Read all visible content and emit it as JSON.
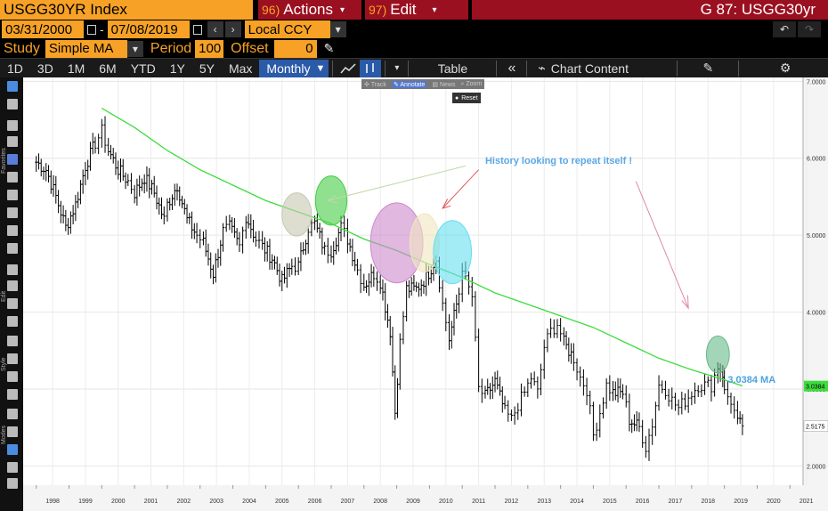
{
  "header": {
    "ticker": "USGG30YR Index",
    "actions_num": "96)",
    "actions_label": "Actions",
    "edit_num": "97)",
    "edit_label": "Edit",
    "chart_id": "G 87: USGG30yr"
  },
  "date_range": {
    "start": "03/31/2000",
    "separator": "-",
    "end": "07/08/2019",
    "currency": "Local CCY"
  },
  "study": {
    "label": "Study",
    "type": "Simple MA",
    "period_label": "Period",
    "period": "100",
    "offset_label": "Offset",
    "offset": "0"
  },
  "timeframes": [
    "1D",
    "3D",
    "1M",
    "6M",
    "YTD",
    "1Y",
    "5Y",
    "Max"
  ],
  "frequency": "Monthly",
  "table_label": "Table",
  "chart_content_label": "Chart Content",
  "float_tools": {
    "track": "Track",
    "annotate": "Annotate",
    "news": "News",
    "zoom": "Zoom",
    "reset": "Reset"
  },
  "side_labels": {
    "favorites": "Favorites",
    "edit": "Edit",
    "style": "Style",
    "modes": "Modes"
  },
  "chart_data": {
    "type": "line",
    "title": "",
    "xlabel": "",
    "ylabel": "",
    "x_ticks": [
      "1998",
      "1999",
      "2000",
      "2001",
      "2002",
      "2003",
      "2004",
      "2005",
      "2006",
      "2007",
      "2008",
      "2009",
      "2010",
      "2011",
      "2012",
      "2013",
      "2014",
      "2015",
      "2016",
      "2017",
      "2018",
      "2019",
      "2020",
      "2021"
    ],
    "y_ticks": [
      "2.0000",
      "3.0000",
      "4.0000",
      "5.0000",
      "6.0000",
      "7.0000"
    ],
    "ylim": [
      1.75,
      7.05
    ],
    "xlim": [
      1997.6,
      2021.4
    ],
    "grid": true,
    "series": [
      {
        "kind": "ohlc-bars",
        "color": "#000000",
        "points": [
          [
            1998.0,
            5.95
          ],
          [
            1998.3,
            5.85
          ],
          [
            1998.6,
            5.5
          ],
          [
            1998.9,
            5.1
          ],
          [
            1999.2,
            5.4
          ],
          [
            1999.5,
            5.9
          ],
          [
            1999.8,
            6.2
          ],
          [
            2000.0,
            6.35
          ],
          [
            2000.2,
            6.1
          ],
          [
            2000.5,
            5.85
          ],
          [
            2000.8,
            5.7
          ],
          [
            2001.0,
            5.55
          ],
          [
            2001.3,
            5.75
          ],
          [
            2001.6,
            5.55
          ],
          [
            2001.9,
            5.2
          ],
          [
            2002.0,
            5.4
          ],
          [
            2002.3,
            5.65
          ],
          [
            2002.6,
            5.2
          ],
          [
            2002.9,
            5.0
          ],
          [
            2003.1,
            4.9
          ],
          [
            2003.4,
            4.5
          ],
          [
            2003.7,
            5.05
          ],
          [
            2003.9,
            5.1
          ],
          [
            2004.2,
            4.85
          ],
          [
            2004.4,
            5.25
          ],
          [
            2004.7,
            4.95
          ],
          [
            2004.9,
            4.85
          ],
          [
            2005.2,
            4.7
          ],
          [
            2005.5,
            4.4
          ],
          [
            2005.8,
            4.6
          ],
          [
            2006.0,
            4.6
          ],
          [
            2006.3,
            5.1
          ],
          [
            2006.5,
            5.15
          ],
          [
            2006.8,
            4.8
          ],
          [
            2007.0,
            4.8
          ],
          [
            2007.3,
            5.1
          ],
          [
            2007.5,
            4.95
          ],
          [
            2007.8,
            4.55
          ],
          [
            2008.0,
            4.35
          ],
          [
            2008.3,
            4.5
          ],
          [
            2008.5,
            4.4
          ],
          [
            2008.8,
            3.75
          ],
          [
            2008.95,
            2.7
          ],
          [
            2009.1,
            3.6
          ],
          [
            2009.3,
            4.3
          ],
          [
            2009.6,
            4.3
          ],
          [
            2009.9,
            4.45
          ],
          [
            2010.2,
            4.7
          ],
          [
            2010.4,
            4.1
          ],
          [
            2010.6,
            3.65
          ],
          [
            2010.9,
            4.25
          ],
          [
            2011.0,
            4.6
          ],
          [
            2011.1,
            4.4
          ],
          [
            2011.3,
            4.2
          ],
          [
            2011.5,
            3.0
          ],
          [
            2011.7,
            2.9
          ],
          [
            2012.0,
            3.1
          ],
          [
            2012.3,
            2.7
          ],
          [
            2012.5,
            2.6
          ],
          [
            2012.7,
            2.8
          ],
          [
            2012.9,
            2.95
          ],
          [
            2013.1,
            3.15
          ],
          [
            2013.3,
            2.95
          ],
          [
            2013.5,
            3.55
          ],
          [
            2013.7,
            3.75
          ],
          [
            2013.9,
            3.85
          ],
          [
            2014.1,
            3.6
          ],
          [
            2014.4,
            3.4
          ],
          [
            2014.6,
            3.15
          ],
          [
            2014.8,
            3.0
          ],
          [
            2015.0,
            2.4
          ],
          [
            2015.2,
            2.7
          ],
          [
            2015.4,
            3.05
          ],
          [
            2015.6,
            2.95
          ],
          [
            2015.9,
            2.95
          ],
          [
            2016.1,
            2.6
          ],
          [
            2016.4,
            2.5
          ],
          [
            2016.6,
            2.25
          ],
          [
            2016.8,
            2.55
          ],
          [
            2017.0,
            3.05
          ],
          [
            2017.2,
            3.0
          ],
          [
            2017.4,
            2.85
          ],
          [
            2017.6,
            2.75
          ],
          [
            2017.8,
            2.85
          ],
          [
            2018.0,
            2.95
          ],
          [
            2018.2,
            3.05
          ],
          [
            2018.4,
            3.05
          ],
          [
            2018.6,
            3.05
          ],
          [
            2018.8,
            3.3
          ],
          [
            2018.95,
            3.2
          ],
          [
            2019.0,
            2.95
          ],
          [
            2019.2,
            2.85
          ],
          [
            2019.4,
            2.55
          ],
          [
            2019.55,
            2.52
          ]
        ]
      },
      {
        "name": "3.0384 MA",
        "kind": "line",
        "color": "#3ddc3d",
        "points": [
          [
            2000.0,
            6.65
          ],
          [
            2001.0,
            6.4
          ],
          [
            2002.0,
            6.1
          ],
          [
            2003.0,
            5.85
          ],
          [
            2004.0,
            5.65
          ],
          [
            2005.0,
            5.45
          ],
          [
            2006.0,
            5.3
          ],
          [
            2007.0,
            5.15
          ],
          [
            2008.0,
            4.95
          ],
          [
            2009.0,
            4.8
          ],
          [
            2010.0,
            4.62
          ],
          [
            2011.0,
            4.45
          ],
          [
            2012.0,
            4.25
          ],
          [
            2013.0,
            4.1
          ],
          [
            2014.0,
            3.95
          ],
          [
            2015.0,
            3.8
          ],
          [
            2016.0,
            3.6
          ],
          [
            2017.0,
            3.4
          ],
          [
            2018.0,
            3.25
          ],
          [
            2019.0,
            3.12
          ],
          [
            2019.55,
            3.04
          ]
        ]
      }
    ],
    "annotations": [
      {
        "text": "History looking to repeat itself !",
        "color": "#5aa8e6"
      },
      {
        "text": "3.0384 MA",
        "color": "#4aa3e0"
      }
    ],
    "price_labels": [
      {
        "value": "3.0384",
        "color": "#3ddc3d"
      },
      {
        "value": "2.5175",
        "color": "#ffffff"
      }
    ],
    "highlight_circles": [
      {
        "x": 2005.95,
        "y": 5.27,
        "rx": 0.45,
        "ry": 0.28,
        "color": "#c8c8b0"
      },
      {
        "x": 2007.0,
        "y": 5.45,
        "rx": 0.48,
        "ry": 0.32,
        "color": "#44cc44"
      },
      {
        "x": 2009.0,
        "y": 4.9,
        "rx": 0.8,
        "ry": 0.52,
        "color": "#cc88cc"
      },
      {
        "x": 2009.85,
        "y": 4.9,
        "rx": 0.45,
        "ry": 0.38,
        "color": "#f0e6c0"
      },
      {
        "x": 2010.7,
        "y": 4.78,
        "rx": 0.58,
        "ry": 0.41,
        "color": "#66ddee"
      },
      {
        "x": 2018.8,
        "y": 3.45,
        "rx": 0.35,
        "ry": 0.24,
        "color": "#66bb88"
      }
    ]
  }
}
